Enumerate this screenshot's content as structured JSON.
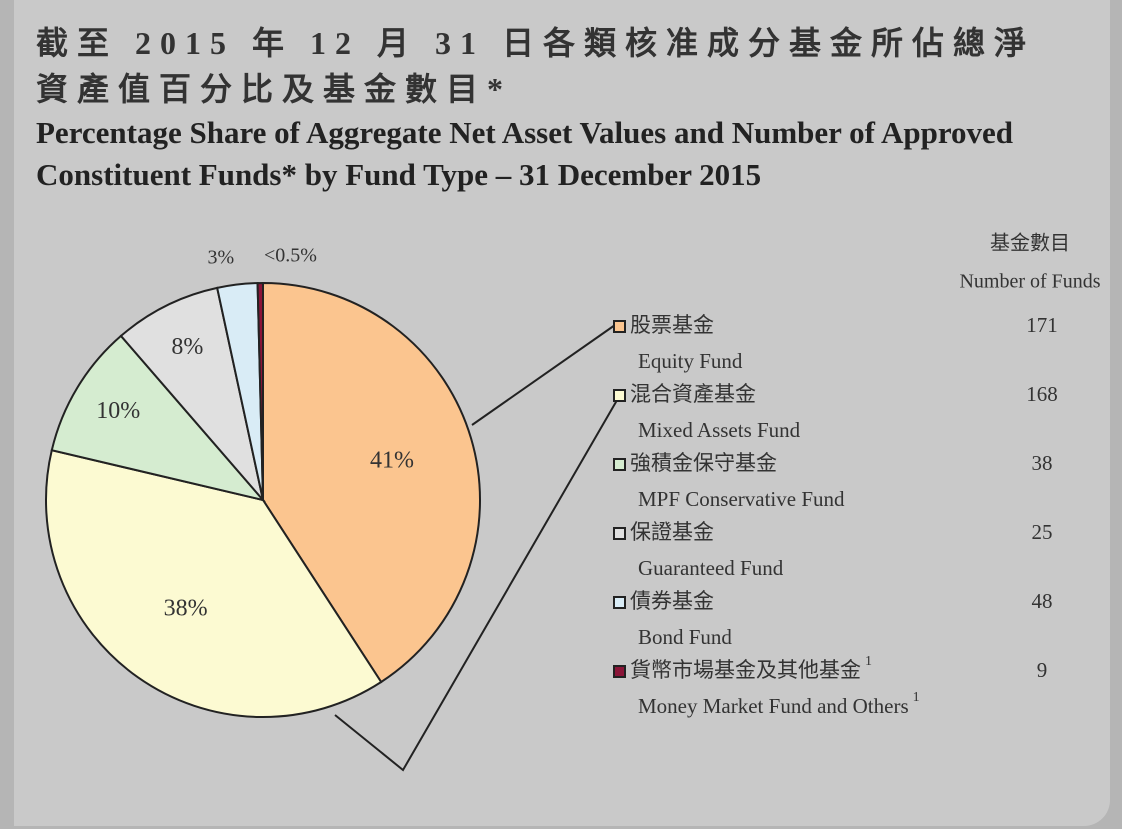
{
  "chart_data": {
    "type": "pie",
    "title_zh": "截至 2015 年 12 月 31 日各類核准成分基金所佔總淨資產值百分比及基金數目*",
    "title": "Percentage Share of Aggregate Net Asset Values and Number of Approved Constituent Funds* by Fund Type – 31 December 2015",
    "categories": [
      "Equity Fund",
      "Mixed Assets Fund",
      "MPF Conservative Fund",
      "Guaranteed Fund",
      "Bond Fund",
      "Money Market Fund and Others"
    ],
    "categories_zh": [
      "股票基金",
      "混合資產基金",
      "強積金保守基金",
      "保證基金",
      "債券基金",
      "貨幣市場基金及其他基金"
    ],
    "values": [
      41,
      38,
      10,
      8,
      3,
      0.4
    ],
    "value_labels": [
      "41%",
      "38%",
      "10%",
      "8%",
      "3%",
      "<0.5%"
    ],
    "colors": [
      "#fbc58f",
      "#fcfad2",
      "#d5ecd0",
      "#e0e0e0",
      "#d9ecf6",
      "#8a1538"
    ],
    "fund_count_header_zh": "基金數目",
    "fund_count_header": "Number of Funds",
    "fund_counts": [
      171,
      168,
      38,
      25,
      48,
      9
    ],
    "note_mark": "1"
  }
}
